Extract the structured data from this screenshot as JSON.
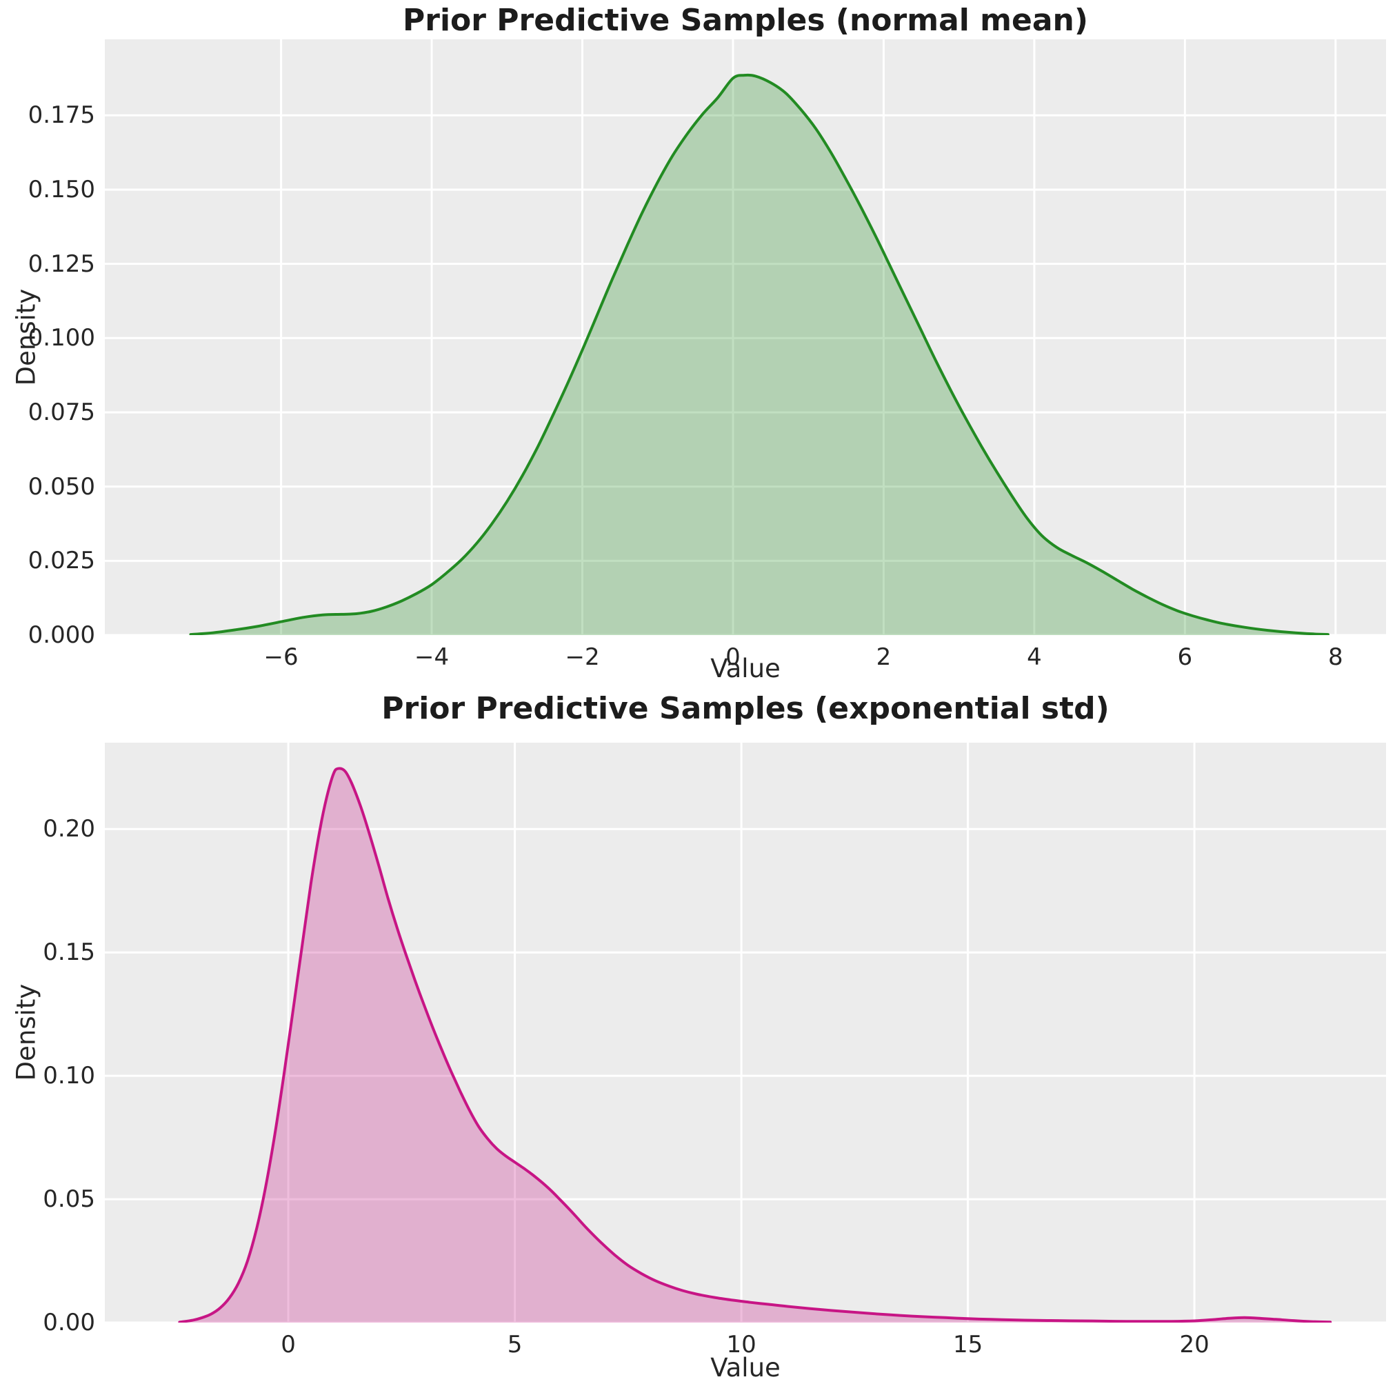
{
  "figure": {
    "background": "#ffffff",
    "plot_background": "#ececec",
    "grid_color": "#ffffff",
    "text_color": "#262626",
    "title_color": "#1c1c1c"
  },
  "chart_data": [
    {
      "type": "area",
      "title": "Prior Predictive Samples (normal mean)",
      "xlabel": "Value",
      "ylabel": "Density",
      "line_color": "#228b22",
      "fill_color": "rgba(34,139,34,0.28)",
      "grid": true,
      "legend": "none",
      "xlim": [
        -8.34,
        8.67
      ],
      "ylim": [
        0,
        0.2006
      ],
      "xticks": {
        "values": [
          -6,
          -4,
          -2,
          0,
          2,
          4,
          6,
          8
        ],
        "labels": [
          "−6",
          "−4",
          "−2",
          "0",
          "2",
          "4",
          "6",
          "8"
        ]
      },
      "yticks": {
        "values": [
          0.0,
          0.025,
          0.05,
          0.075,
          0.1,
          0.125,
          0.15,
          0.175
        ],
        "labels": [
          "0.000",
          "0.025",
          "0.050",
          "0.075",
          "0.100",
          "0.125",
          "0.150",
          "0.175"
        ]
      },
      "points": [
        [
          -7.2,
          0.0002
        ],
        [
          -6.9,
          0.0008
        ],
        [
          -6.6,
          0.0018
        ],
        [
          -6.3,
          0.003
        ],
        [
          -6.0,
          0.0045
        ],
        [
          -5.7,
          0.006
        ],
        [
          -5.45,
          0.0068
        ],
        [
          -5.2,
          0.007
        ],
        [
          -5.0,
          0.0072
        ],
        [
          -4.8,
          0.008
        ],
        [
          -4.6,
          0.0095
        ],
        [
          -4.4,
          0.0115
        ],
        [
          -4.2,
          0.014
        ],
        [
          -4.0,
          0.017
        ],
        [
          -3.8,
          0.021
        ],
        [
          -3.6,
          0.0255
        ],
        [
          -3.4,
          0.031
        ],
        [
          -3.2,
          0.0375
        ],
        [
          -3.0,
          0.045
        ],
        [
          -2.8,
          0.0535
        ],
        [
          -2.6,
          0.063
        ],
        [
          -2.4,
          0.0735
        ],
        [
          -2.2,
          0.0845
        ],
        [
          -2.0,
          0.096
        ],
        [
          -1.8,
          0.108
        ],
        [
          -1.6,
          0.12
        ],
        [
          -1.4,
          0.1315
        ],
        [
          -1.2,
          0.1425
        ],
        [
          -1.0,
          0.1525
        ],
        [
          -0.8,
          0.1615
        ],
        [
          -0.6,
          0.169
        ],
        [
          -0.4,
          0.1755
        ],
        [
          -0.2,
          0.181
        ],
        [
          0.0,
          0.1875
        ],
        [
          0.15,
          0.1885
        ],
        [
          0.3,
          0.1882
        ],
        [
          0.5,
          0.186
        ],
        [
          0.7,
          0.1825
        ],
        [
          0.9,
          0.177
        ],
        [
          1.1,
          0.1705
        ],
        [
          1.3,
          0.1625
        ],
        [
          1.5,
          0.1535
        ],
        [
          1.7,
          0.144
        ],
        [
          1.9,
          0.134
        ],
        [
          2.1,
          0.1235
        ],
        [
          2.3,
          0.113
        ],
        [
          2.5,
          0.1025
        ],
        [
          2.7,
          0.092
        ],
        [
          2.9,
          0.082
        ],
        [
          3.1,
          0.0725
        ],
        [
          3.3,
          0.0635
        ],
        [
          3.5,
          0.055
        ],
        [
          3.7,
          0.047
        ],
        [
          3.9,
          0.0395
        ],
        [
          4.1,
          0.0335
        ],
        [
          4.3,
          0.0295
        ],
        [
          4.5,
          0.0268
        ],
        [
          4.7,
          0.0243
        ],
        [
          4.9,
          0.0215
        ],
        [
          5.1,
          0.0185
        ],
        [
          5.3,
          0.0155
        ],
        [
          5.5,
          0.0128
        ],
        [
          5.7,
          0.0103
        ],
        [
          5.9,
          0.0082
        ],
        [
          6.1,
          0.0065
        ],
        [
          6.3,
          0.0051
        ],
        [
          6.5,
          0.0039
        ],
        [
          6.8,
          0.0026
        ],
        [
          7.1,
          0.0016
        ],
        [
          7.4,
          0.0009
        ],
        [
          7.7,
          0.0004
        ],
        [
          7.9,
          0.0002
        ]
      ]
    },
    {
      "type": "area",
      "title": "Prior Predictive Samples (exponential std)",
      "xlabel": "Value",
      "ylabel": "Density",
      "line_color": "#c71585",
      "fill_color": "rgba(199,21,133,0.28)",
      "grid": true,
      "legend": "none",
      "xlim": [
        -4.05,
        24.23
      ],
      "ylim": [
        0,
        0.235
      ],
      "xticks": {
        "values": [
          0,
          5,
          10,
          15,
          20
        ],
        "labels": [
          "0",
          "5",
          "10",
          "15",
          "20"
        ]
      },
      "yticks": {
        "values": [
          0.0,
          0.05,
          0.1,
          0.15,
          0.2
        ],
        "labels": [
          "0.00",
          "0.05",
          "0.10",
          "0.15",
          "0.20"
        ]
      },
      "points": [
        [
          -2.4,
          0.0002
        ],
        [
          -2.1,
          0.001
        ],
        [
          -1.9,
          0.002
        ],
        [
          -1.7,
          0.0035
        ],
        [
          -1.5,
          0.006
        ],
        [
          -1.3,
          0.01
        ],
        [
          -1.1,
          0.016
        ],
        [
          -0.9,
          0.025
        ],
        [
          -0.7,
          0.038
        ],
        [
          -0.5,
          0.055
        ],
        [
          -0.3,
          0.076
        ],
        [
          -0.1,
          0.1
        ],
        [
          0.1,
          0.126
        ],
        [
          0.3,
          0.152
        ],
        [
          0.5,
          0.178
        ],
        [
          0.7,
          0.2
        ],
        [
          0.85,
          0.213
        ],
        [
          1.0,
          0.2225
        ],
        [
          1.1,
          0.2245
        ],
        [
          1.25,
          0.2235
        ],
        [
          1.4,
          0.2185
        ],
        [
          1.6,
          0.209
        ],
        [
          1.8,
          0.1975
        ],
        [
          2.0,
          0.185
        ],
        [
          2.2,
          0.172
        ],
        [
          2.4,
          0.16
        ],
        [
          2.6,
          0.149
        ],
        [
          2.8,
          0.1385
        ],
        [
          3.0,
          0.1285
        ],
        [
          3.2,
          0.119
        ],
        [
          3.4,
          0.11
        ],
        [
          3.6,
          0.1015
        ],
        [
          3.8,
          0.0935
        ],
        [
          4.0,
          0.086
        ],
        [
          4.2,
          0.0795
        ],
        [
          4.4,
          0.0745
        ],
        [
          4.6,
          0.0705
        ],
        [
          4.8,
          0.0675
        ],
        [
          5.0,
          0.065
        ],
        [
          5.2,
          0.0625
        ],
        [
          5.4,
          0.0598
        ],
        [
          5.6,
          0.0568
        ],
        [
          5.8,
          0.0535
        ],
        [
          6.0,
          0.0498
        ],
        [
          6.2,
          0.046
        ],
        [
          6.4,
          0.042
        ],
        [
          6.6,
          0.038
        ],
        [
          6.9,
          0.0325
        ],
        [
          7.2,
          0.0275
        ],
        [
          7.5,
          0.0232
        ],
        [
          7.8,
          0.0198
        ],
        [
          8.1,
          0.017
        ],
        [
          8.4,
          0.0148
        ],
        [
          8.7,
          0.013
        ],
        [
          9.0,
          0.0116
        ],
        [
          9.4,
          0.0102
        ],
        [
          9.8,
          0.0091
        ],
        [
          10.2,
          0.0082
        ],
        [
          10.6,
          0.0074
        ],
        [
          11.0,
          0.0066
        ],
        [
          11.5,
          0.0057
        ],
        [
          12.0,
          0.0049
        ],
        [
          12.5,
          0.0042
        ],
        [
          13.0,
          0.0035
        ],
        [
          13.5,
          0.0029
        ],
        [
          14.0,
          0.0024
        ],
        [
          14.5,
          0.002
        ],
        [
          15.0,
          0.0016
        ],
        [
          15.5,
          0.0013
        ],
        [
          16.0,
          0.0011
        ],
        [
          16.5,
          0.0009
        ],
        [
          17.0,
          0.0008
        ],
        [
          17.5,
          0.0007
        ],
        [
          18.0,
          0.0006
        ],
        [
          18.5,
          0.0005
        ],
        [
          19.0,
          0.0005
        ],
        [
          19.5,
          0.0005
        ],
        [
          20.0,
          0.0007
        ],
        [
          20.4,
          0.0012
        ],
        [
          20.8,
          0.0018
        ],
        [
          21.1,
          0.002
        ],
        [
          21.4,
          0.0018
        ],
        [
          21.8,
          0.0013
        ],
        [
          22.2,
          0.0008
        ],
        [
          22.6,
          0.0004
        ],
        [
          23.0,
          0.0002
        ]
      ]
    }
  ]
}
